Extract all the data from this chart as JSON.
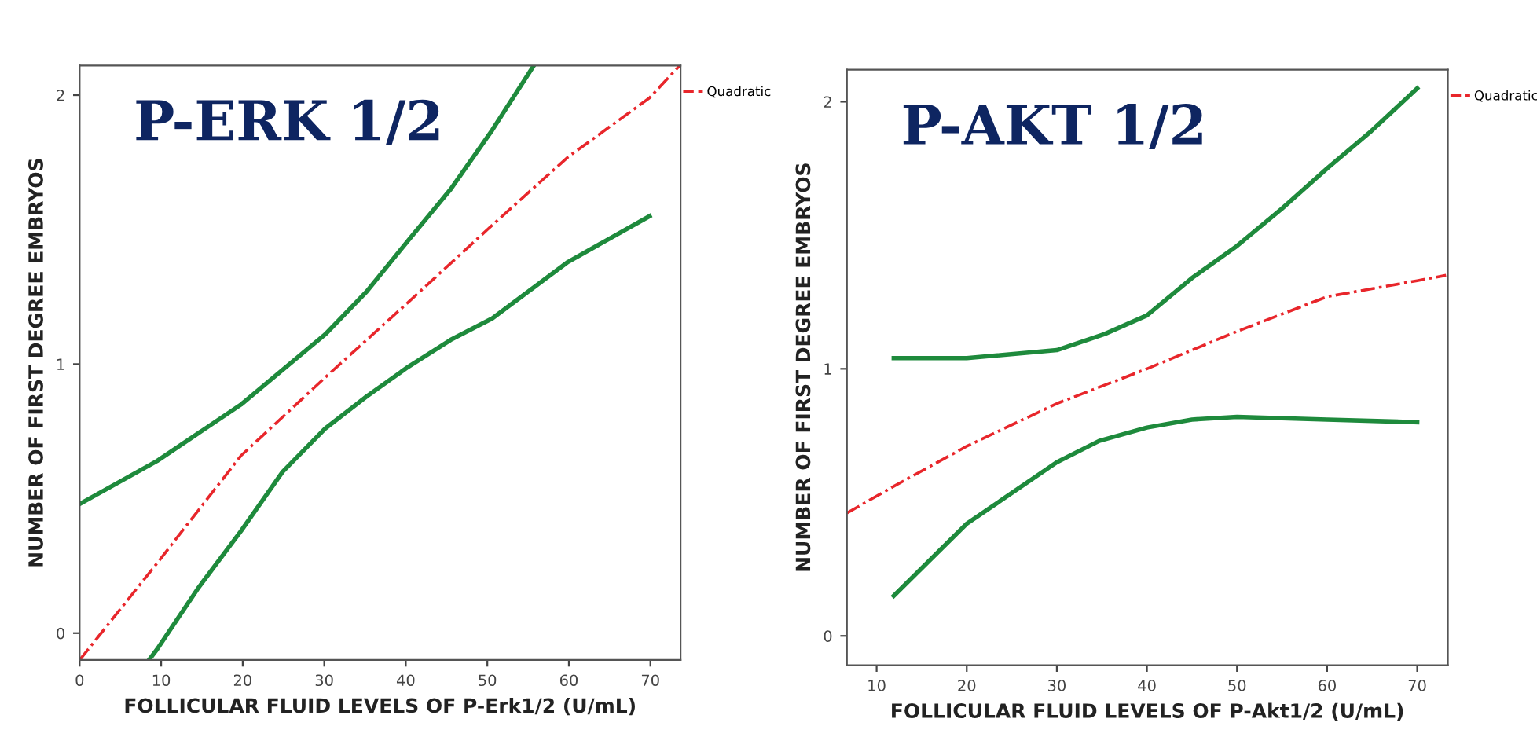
{
  "chart_data": [
    {
      "type": "line",
      "title": "P-ERK 1/2",
      "xlabel": "FOLLICULAR FLUID LEVELS OF P-Erk1/2 (U/mL)",
      "ylabel": "NUMBER OF FIRST DEGREE EMBRYOS",
      "xlim": [
        0,
        73.7
      ],
      "ylim": [
        -0.1,
        2.11
      ],
      "xticks": [
        0,
        10,
        20,
        30,
        40,
        50,
        60,
        70
      ],
      "yticks": [
        0,
        1,
        2
      ],
      "grid": false,
      "legend": "top right",
      "marker": "none",
      "series": [
        {
          "name": "Quadratic",
          "color": "#e8262b",
          "line_style": "dashed",
          "x": [
            0,
            9.5,
            19.8,
            30.1,
            40.3,
            50,
            59.9,
            69.9,
            73.6
          ],
          "values": [
            -0.1,
            0.26,
            0.66,
            0.95,
            1.23,
            1.5,
            1.77,
            1.99,
            2.11
          ]
        },
        {
          "color": "#1e8a3c",
          "line_style": "solid",
          "x": [
            0,
            9.5,
            19.8,
            30.1,
            35.2,
            40.3,
            45.5,
            50.6,
            55.7
          ],
          "values": [
            0.48,
            0.64,
            0.85,
            1.11,
            1.27,
            1.46,
            1.65,
            1.87,
            2.11
          ]
        },
        {
          "color": "#1e8a3c",
          "line_style": "solid",
          "x": [
            8.5,
            9.5,
            14.6,
            19.8,
            24.9,
            30.1,
            35.2,
            40.3,
            45.5,
            50.6,
            59.9,
            69.9
          ],
          "values": [
            -0.1,
            -0.06,
            0.17,
            0.38,
            0.6,
            0.76,
            0.88,
            0.99,
            1.09,
            1.17,
            1.38,
            1.55
          ]
        }
      ]
    },
    {
      "type": "line",
      "title": "P-AKT 1/2",
      "xlabel": "FOLLICULAR FLUID LEVELS OF P-Akt1/2 (U/mL)",
      "ylabel": "NUMBER OF FIRST DEGREE EMBRYOS",
      "xlim": [
        6.7,
        73.4
      ],
      "ylim": [
        -0.11,
        2.12
      ],
      "xticks": [
        10,
        20,
        30,
        40,
        50,
        60,
        70
      ],
      "yticks": [
        0,
        1,
        2
      ],
      "grid": false,
      "legend": "top right",
      "marker": "none",
      "series": [
        {
          "name": "Quadratic",
          "color": "#e8262b",
          "line_style": "dashed",
          "x": [
            6.7,
            11.9,
            20,
            30,
            40,
            50,
            60,
            70,
            73.2
          ],
          "values": [
            0.46,
            0.56,
            0.71,
            0.87,
            1.0,
            1.14,
            1.27,
            1.33,
            1.35
          ]
        },
        {
          "color": "#1e8a3c",
          "line_style": "solid",
          "x": [
            11.9,
            20,
            30,
            35.3,
            40,
            45,
            50,
            55,
            60,
            64.9,
            70
          ],
          "values": [
            1.04,
            1.04,
            1.07,
            1.13,
            1.2,
            1.34,
            1.46,
            1.6,
            1.75,
            1.89,
            2.05
          ]
        },
        {
          "color": "#1e8a3c",
          "line_style": "solid",
          "x": [
            11.9,
            20,
            30,
            34.7,
            40,
            45,
            50,
            60,
            70
          ],
          "values": [
            0.15,
            0.42,
            0.65,
            0.73,
            0.78,
            0.81,
            0.82,
            0.81,
            0.8
          ]
        }
      ]
    }
  ]
}
